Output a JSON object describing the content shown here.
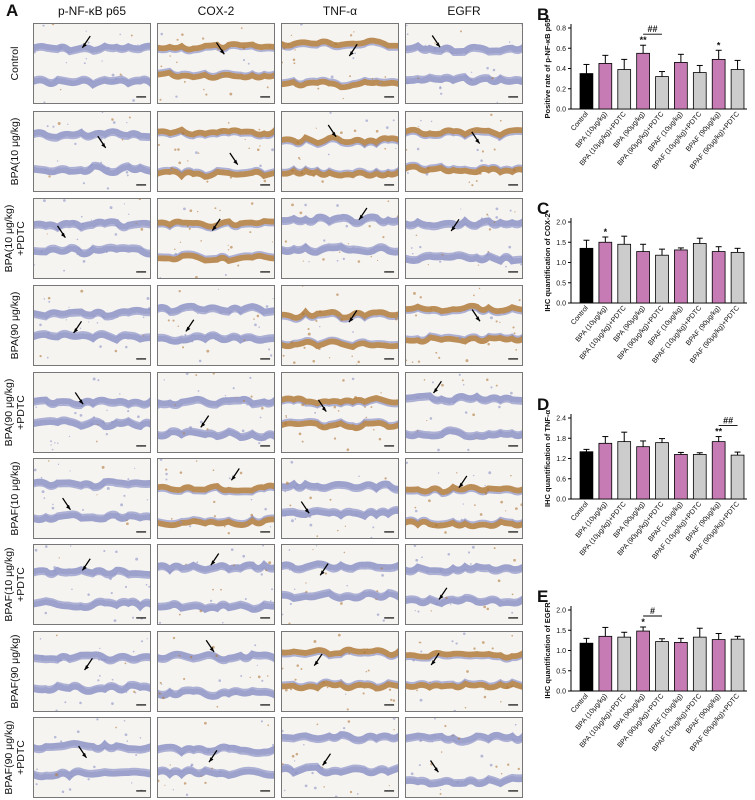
{
  "panel_a": {
    "letter": "A",
    "columns": [
      "p-NF-κB p65",
      "COX-2",
      "TNF-α",
      "EGFR"
    ],
    "rows": [
      "Control",
      "BPA(10 μg/kg)",
      "BPA(10 μg/kg)\n+PDTC",
      "BPA(90 μg/kg)",
      "BPA(90 μg/kg)\n+PDTC",
      "BPAF(10 μg/kg)",
      "BPAF(10 μg/kg)\n+PDTC",
      "BPAF(90 μg/kg)",
      "BPAF(90 μg/kg)\n+PDTC"
    ],
    "stain_colors": {
      "hematoxylin": "#8d93c7",
      "dab": "#b07a3c",
      "background": "#f6f4f1"
    }
  },
  "chart_data": [
    {
      "letter": "B",
      "type": "bar",
      "ylabel": "Positive rate of p-NF-κB p65",
      "ylim": [
        0,
        0.8
      ],
      "yticks": [
        "0.0",
        "0.2",
        "0.4",
        "0.6",
        "0.8"
      ],
      "categories": [
        "Control",
        "BPA (10μg/kg)",
        "BPA (10μg/kg)+PDTC",
        "BPA (90μg/kg)",
        "BPA (90μg/kg)+PDTC",
        "BPAF (10μg/kg)",
        "BPAF (10μg/kg)+PDTC",
        "BPAF (90μg/kg)",
        "BPAF (90μg/kg)+PDTC"
      ],
      "values": [
        0.35,
        0.45,
        0.39,
        0.55,
        0.32,
        0.46,
        0.36,
        0.49,
        0.39
      ],
      "errors": [
        0.09,
        0.08,
        0.1,
        0.08,
        0.05,
        0.08,
        0.07,
        0.09,
        0.09
      ],
      "colors": [
        "#000000",
        "#c77bb4",
        "#cccccc",
        "#c77bb4",
        "#cccccc",
        "#c77bb4",
        "#cccccc",
        "#c77bb4",
        "#cccccc"
      ],
      "stars": [
        {
          "index": 3,
          "text": "**"
        },
        {
          "index": 7,
          "text": "*"
        }
      ],
      "brackets": [
        {
          "from": 3,
          "to": 4,
          "text": "##"
        }
      ]
    },
    {
      "letter": "C",
      "type": "bar",
      "ylabel": "IHC quantification of COX-2",
      "ylim": [
        0,
        2.0
      ],
      "yticks": [
        "0.0",
        "0.5",
        "1.0",
        "1.5",
        "2.0"
      ],
      "categories": [
        "Control",
        "BPA (10μg/kg)",
        "BPA (10μg/kg)+PDTC",
        "BPA (90μg/kg)",
        "BPA (90μg/kg)+PDTC",
        "BPAF (10μg/kg)",
        "BPAF (10μg/kg)+PDTC",
        "BPAF (90μg/kg)",
        "BPAF (90μg/kg)+PDTC"
      ],
      "values": [
        1.35,
        1.5,
        1.45,
        1.27,
        1.18,
        1.31,
        1.47,
        1.27,
        1.25
      ],
      "errors": [
        0.2,
        0.13,
        0.2,
        0.18,
        0.15,
        0.05,
        0.13,
        0.12,
        0.1
      ],
      "colors": [
        "#000000",
        "#c77bb4",
        "#cccccc",
        "#c77bb4",
        "#cccccc",
        "#c77bb4",
        "#cccccc",
        "#c77bb4",
        "#cccccc"
      ],
      "stars": [
        {
          "index": 1,
          "text": "*"
        }
      ],
      "brackets": []
    },
    {
      "letter": "D",
      "type": "bar",
      "ylabel": "IHC quantification of TNF-α",
      "ylim": [
        0,
        2.4
      ],
      "yticks": [
        "0.0",
        "0.6",
        "1.2",
        "1.8",
        "2.4"
      ],
      "categories": [
        "Control",
        "BPA (10μg/kg)",
        "BPA (10μg/kg)+PDTC",
        "BPA (90μg/kg)",
        "BPA (90μg/kg)+PDTC",
        "BPAF (10μg/kg)",
        "BPAF (10μg/kg)+PDTC",
        "BPAF (90μg/kg)",
        "BPAF (90μg/kg)+PDTC"
      ],
      "values": [
        1.4,
        1.65,
        1.7,
        1.55,
        1.67,
        1.32,
        1.32,
        1.7,
        1.3
      ],
      "errors": [
        0.07,
        0.2,
        0.28,
        0.17,
        0.12,
        0.06,
        0.05,
        0.15,
        0.09
      ],
      "colors": [
        "#000000",
        "#c77bb4",
        "#cccccc",
        "#c77bb4",
        "#cccccc",
        "#c77bb4",
        "#cccccc",
        "#c77bb4",
        "#cccccc"
      ],
      "stars": [
        {
          "index": 7,
          "text": "**"
        }
      ],
      "brackets": [
        {
          "from": 7,
          "to": 8,
          "text": "##"
        }
      ]
    },
    {
      "letter": "E",
      "type": "bar",
      "ylabel": "IHC quantification of EGFR",
      "ylim": [
        0,
        2.0
      ],
      "yticks": [
        "0.0",
        "0.5",
        "1.0",
        "1.5",
        "2.0"
      ],
      "categories": [
        "Control",
        "BPA (10μg/kg)",
        "BPA (10μg/kg)+PDTC",
        "BPA (90μg/kg)",
        "BPA (90μg/kg)+PDTC",
        "BPAF (10μg/kg)",
        "BPAF (10μg/kg)+PDTC",
        "BPAF (90μg/kg)",
        "BPAF (90μg/kg)+PDTC"
      ],
      "values": [
        1.18,
        1.35,
        1.33,
        1.48,
        1.22,
        1.2,
        1.33,
        1.27,
        1.28
      ],
      "errors": [
        0.12,
        0.22,
        0.12,
        0.1,
        0.07,
        0.1,
        0.22,
        0.15,
        0.07
      ],
      "colors": [
        "#000000",
        "#c77bb4",
        "#cccccc",
        "#c77bb4",
        "#cccccc",
        "#c77bb4",
        "#cccccc",
        "#c77bb4",
        "#cccccc"
      ],
      "stars": [
        {
          "index": 3,
          "text": "*"
        }
      ],
      "brackets": [
        {
          "from": 3,
          "to": 4,
          "text": "#"
        }
      ]
    }
  ]
}
